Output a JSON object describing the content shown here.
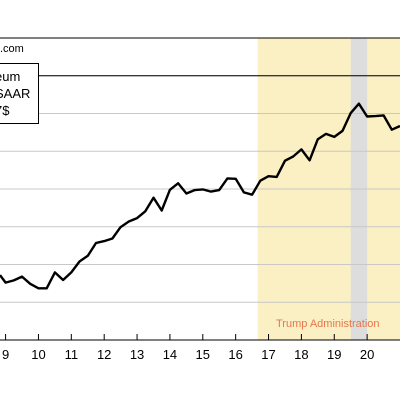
{
  "chart_data": {
    "type": "line",
    "title": "",
    "source_label": ".com",
    "legend_lines": [
      "eum",
      "SAAR",
      "7$"
    ],
    "annotation": "Trump Administration",
    "x_tick_labels": [
      "9",
      "10",
      "11",
      "12",
      "13",
      "14",
      "15",
      "16",
      "17",
      "18",
      "19",
      "20"
    ],
    "x_ticks": [
      9,
      10,
      11,
      12,
      13,
      14,
      15,
      16,
      17,
      18,
      19,
      20
    ],
    "xlim": [
      8.83,
      21.0
    ],
    "ylim": [
      0,
      8
    ],
    "horizontal_gridlines": [
      1,
      2,
      3,
      4,
      5,
      6,
      7
    ],
    "reference_line": 7.0,
    "shaded_regions": [
      {
        "start": 16.67,
        "end": 21.0,
        "color": "#fbefc4"
      },
      {
        "start": 19.5,
        "end": 20.0,
        "color": "#dddddd"
      }
    ],
    "series": [
      {
        "color": "#000000",
        "x": [
          8.83,
          9.0,
          9.25,
          9.5,
          9.75,
          10.0,
          10.25,
          10.5,
          10.75,
          11.0,
          11.25,
          11.5,
          11.75,
          12.0,
          12.25,
          12.5,
          12.75,
          13.0,
          13.25,
          13.5,
          13.75,
          14.0,
          14.25,
          14.5,
          14.75,
          15.0,
          15.25,
          15.5,
          15.75,
          16.0,
          16.25,
          16.5,
          16.75,
          17.0,
          17.25,
          17.5,
          17.75,
          18.0,
          18.25,
          18.5,
          18.75,
          19.0,
          19.25,
          19.5,
          19.75,
          20.0,
          20.25,
          20.5,
          20.75,
          21.0
        ],
        "y": [
          1.72,
          1.52,
          1.58,
          1.68,
          1.49,
          1.37,
          1.37,
          1.79,
          1.59,
          1.79,
          2.08,
          2.23,
          2.57,
          2.62,
          2.69,
          2.99,
          3.14,
          3.23,
          3.41,
          3.77,
          3.43,
          3.98,
          4.15,
          3.88,
          3.97,
          3.99,
          3.93,
          3.97,
          4.28,
          4.27,
          3.91,
          3.85,
          4.22,
          4.34,
          4.32,
          4.75,
          4.86,
          5.05,
          4.76,
          5.32,
          5.46,
          5.38,
          5.54,
          6.01,
          6.26,
          5.92,
          5.93,
          5.95,
          5.57,
          5.67
        ]
      }
    ]
  }
}
